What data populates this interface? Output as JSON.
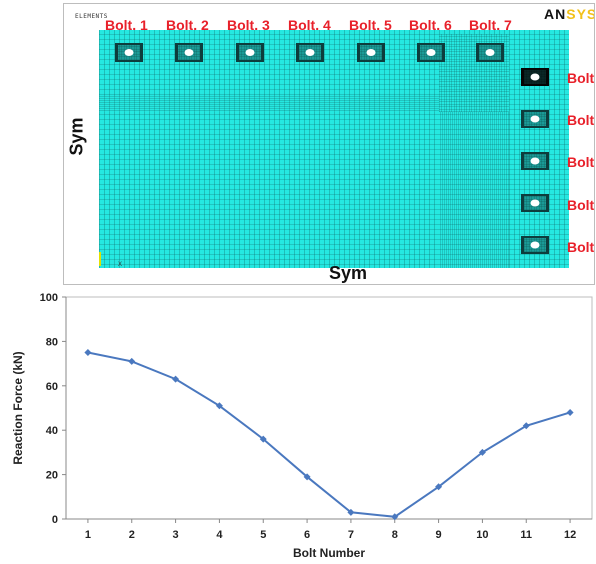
{
  "fe_model": {
    "elements_label": "ELEMENTS",
    "logo_part1": "AN",
    "logo_part2": "SYS",
    "sym_vertical": "Sym",
    "sym_horizontal": "Sym",
    "top_bolt_labels": [
      "Bolt. 1",
      "Bolt. 2",
      "Bolt. 3",
      "Bolt. 4",
      "Bolt. 5",
      "Bolt. 6",
      "Bolt. 7"
    ],
    "side_bolt_labels": [
      "Bolt.",
      "Bolt.",
      "Bolt.",
      "Bolt.",
      "Bolt."
    ],
    "colors": {
      "mesh": "#25e8e1",
      "mesh_line": "#0e5c5c",
      "bolt_label": "#e8202a"
    }
  },
  "chart_data": {
    "type": "line",
    "title": "",
    "xlabel": "Bolt Number",
    "ylabel": "Reaction Force (kN)",
    "x": [
      1,
      2,
      3,
      4,
      5,
      6,
      7,
      8,
      9,
      10,
      11,
      12
    ],
    "series": [
      {
        "values": [
          75,
          71,
          63,
          51,
          36,
          19,
          3,
          1,
          14.5,
          30,
          42,
          48
        ],
        "color": "#4a78bf"
      }
    ],
    "xlim": [
      0.5,
      12.5
    ],
    "ylim": [
      0,
      100
    ],
    "yticks": [
      0,
      20,
      40,
      60,
      80,
      100
    ],
    "xticks": [
      1,
      2,
      3,
      4,
      5,
      6,
      7,
      8,
      9,
      10,
      11,
      12
    ],
    "grid": false,
    "legend": "none"
  }
}
